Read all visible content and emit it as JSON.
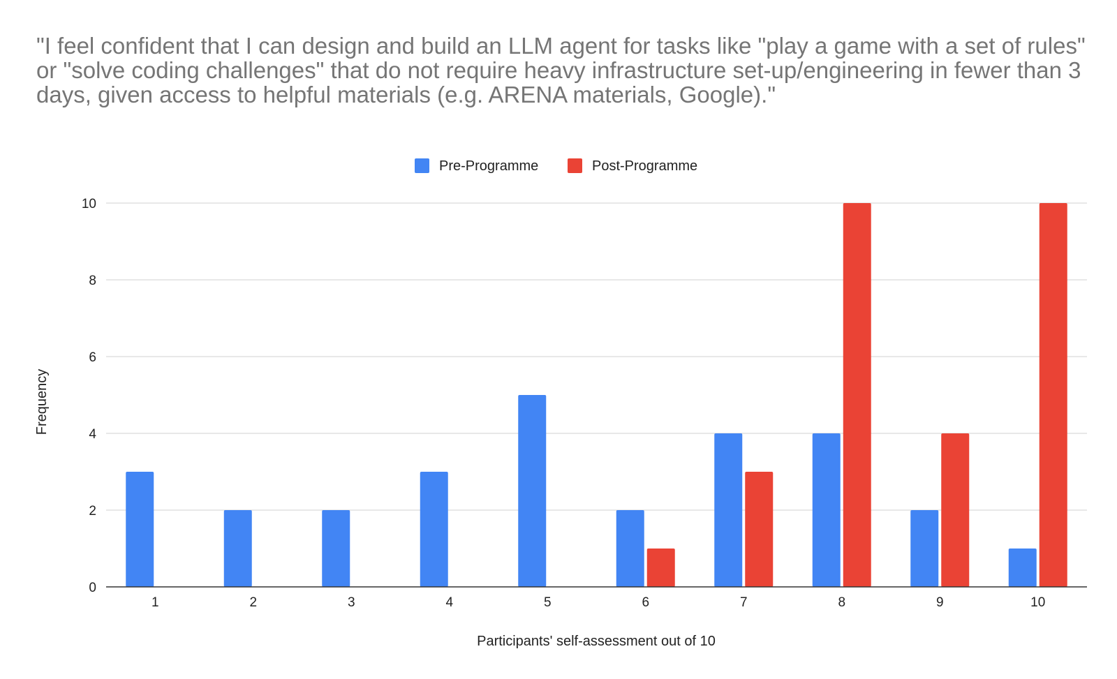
{
  "chart_data": {
    "type": "bar",
    "title": "\"I feel confident that I can design and build an LLM agent for tasks like \"play a game with a set of rules\" or \"solve coding challenges\" that do not require heavy infrastructure set-up/engineering in fewer than 3 days, given access to helpful materials (e.g. ARENA materials, Google).\"",
    "xlabel": "Participants' self-assessment out of 10",
    "ylabel": "Frequency",
    "categories": [
      "1",
      "2",
      "3",
      "4",
      "5",
      "6",
      "7",
      "8",
      "9",
      "10"
    ],
    "series": [
      {
        "name": "Pre-Programme",
        "color": "#4285F4",
        "values": [
          3,
          2,
          2,
          3,
          5,
          2,
          4,
          4,
          2,
          1
        ]
      },
      {
        "name": "Post-Programme",
        "color": "#EA4335",
        "values": [
          0,
          0,
          0,
          0,
          0,
          1,
          3,
          10,
          4,
          10
        ]
      }
    ],
    "ylim": [
      0,
      10
    ],
    "yticks": [
      0,
      2,
      4,
      6,
      8,
      10
    ],
    "grid": true,
    "legend_position": "top-center"
  }
}
